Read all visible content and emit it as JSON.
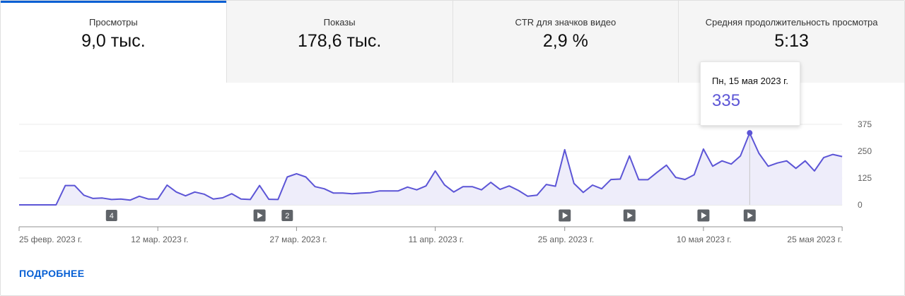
{
  "tabs": [
    {
      "label": "Просмотры",
      "value": "9,0 тыс."
    },
    {
      "label": "Показы",
      "value": "178,6 тыс."
    },
    {
      "label": "CTR для значков видео",
      "value": "2,9 %"
    },
    {
      "label": "Средняя продолжительность просмотра",
      "value": "5:13"
    }
  ],
  "tooltip": {
    "date": "Пн, 15 мая 2023 г.",
    "value": "335"
  },
  "more_link": "ПОДРОБНЕЕ",
  "colors": {
    "accent": "#065fd4",
    "line": "#5c55d6",
    "fill": "#eeedfa",
    "marker": "#5f6368"
  },
  "chart_data": {
    "type": "area",
    "start_date": "2023-02-25",
    "ylim": [
      0,
      375
    ],
    "yticks": [
      {
        "value": 375,
        "label": "375"
      },
      {
        "value": 250,
        "label": "250"
      },
      {
        "value": 125,
        "label": "125"
      },
      {
        "value": 0,
        "label": "0"
      }
    ],
    "xticks": [
      {
        "day": 0,
        "label": "25 февр. 2023 г."
      },
      {
        "day": 15,
        "label": "12 мар. 2023 г."
      },
      {
        "day": 30,
        "label": "27 мар. 2023 г."
      },
      {
        "day": 45,
        "label": "11 апр. 2023 г."
      },
      {
        "day": 59,
        "label": "25 апр. 2023 г."
      },
      {
        "day": 74,
        "label": "10 мая 2023 г."
      },
      {
        "day": 89,
        "label": "25 мая 2023 г."
      }
    ],
    "values": [
      0,
      0,
      0,
      0,
      0,
      90,
      90,
      45,
      30,
      32,
      25,
      27,
      22,
      40,
      27,
      27,
      92,
      60,
      42,
      60,
      50,
      27,
      33,
      52,
      27,
      25,
      90,
      26,
      25,
      130,
      145,
      130,
      85,
      75,
      55,
      55,
      52,
      55,
      57,
      65,
      65,
      65,
      83,
      70,
      88,
      158,
      93,
      60,
      85,
      85,
      70,
      105,
      72,
      88,
      67,
      40,
      45,
      95,
      87,
      257,
      100,
      58,
      92,
      75,
      118,
      120,
      228,
      117,
      117,
      152,
      185,
      128,
      118,
      140,
      260,
      180,
      205,
      190,
      228,
      335,
      240,
      180,
      195,
      205,
      170,
      205,
      158,
      220,
      235,
      225
    ],
    "highlight": {
      "day": 79,
      "value": 335
    },
    "markers": [
      {
        "day": 10,
        "kind": "count",
        "label": "4"
      },
      {
        "day": 26,
        "kind": "video"
      },
      {
        "day": 29,
        "kind": "count",
        "label": "2"
      },
      {
        "day": 59,
        "kind": "video"
      },
      {
        "day": 66,
        "kind": "video"
      },
      {
        "day": 74,
        "kind": "video"
      },
      {
        "day": 79,
        "kind": "video"
      }
    ]
  }
}
